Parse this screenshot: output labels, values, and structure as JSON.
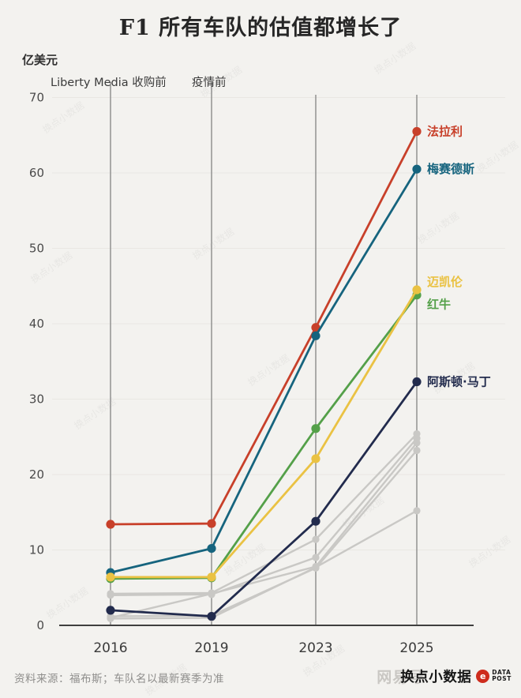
{
  "title": "F1 所有车队的估值都增长了",
  "y_unit_label": "亿美元",
  "annotations": [
    {
      "text": "Liberty Media 收购前",
      "year": "2016"
    },
    {
      "text": "疫情前",
      "year": "2019"
    }
  ],
  "source": "资料来源：福布斯；车队名以最新赛季为准",
  "watermark_text": "换点小数据",
  "footer_logo": {
    "watermark": "网易号",
    "name": "换点小数据",
    "badge": "e",
    "tag_line1": "DATA",
    "tag_line2": "POST"
  },
  "colors": {
    "background": "#f3f2ef",
    "axis": "#3f3f3f",
    "vertical_gridline": "#919191",
    "horizontal_gridline": "#e9e7e3",
    "muted_series": "#c9c8c5"
  },
  "chart_data": {
    "type": "line",
    "x": [
      "2016",
      "2019",
      "2023",
      "2025"
    ],
    "title": "F1 所有车队的估值都增长了",
    "ylabel": "亿美元",
    "ylim": [
      0,
      70
    ],
    "yticks": [
      0,
      10,
      20,
      30,
      40,
      50,
      60,
      70
    ],
    "grid": "horizontal-light, vertical-per-year",
    "legend_position": "right-end-labels",
    "series": [
      {
        "label": "法拉利",
        "color": "#c8402a",
        "values": [
          13.4,
          13.5,
          39.5,
          65.5
        ],
        "label_dy": 0,
        "muted": false
      },
      {
        "label": "梅赛德斯",
        "color": "#16647e",
        "values": [
          7.0,
          10.2,
          38.4,
          60.5
        ],
        "label_dy": 0,
        "muted": false
      },
      {
        "label": "红牛",
        "color": "#54a049",
        "values": [
          6.2,
          6.3,
          26.1,
          43.8
        ],
        "label_dy": 12,
        "muted": false
      },
      {
        "label": "迈凯伦",
        "color": "#eac243",
        "values": [
          6.4,
          6.4,
          22.1,
          44.5
        ],
        "label_dy": -10,
        "muted": false
      },
      {
        "label": "阿斯顿·马丁",
        "color": "#222b4d",
        "values": [
          2.0,
          1.2,
          13.8,
          32.3
        ],
        "label_dy": 0,
        "muted": false
      },
      {
        "label": "",
        "color": "#c9c8c5",
        "values": [
          4.2,
          4.3,
          11.4,
          25.4
        ],
        "muted": true
      },
      {
        "label": "",
        "color": "#c9c8c5",
        "values": [
          4.0,
          4.1,
          9.0,
          24.8
        ],
        "muted": true
      },
      {
        "label": "",
        "color": "#c9c8c5",
        "values": [
          1.0,
          4.2,
          7.8,
          24.2
        ],
        "muted": true
      },
      {
        "label": "",
        "color": "#c9c8c5",
        "values": [
          1.2,
          1.3,
          7.6,
          23.2
        ],
        "muted": true
      },
      {
        "label": "",
        "color": "#c9c8c5",
        "values": [
          0.9,
          1.0,
          7.7,
          15.2
        ],
        "muted": true
      }
    ]
  }
}
